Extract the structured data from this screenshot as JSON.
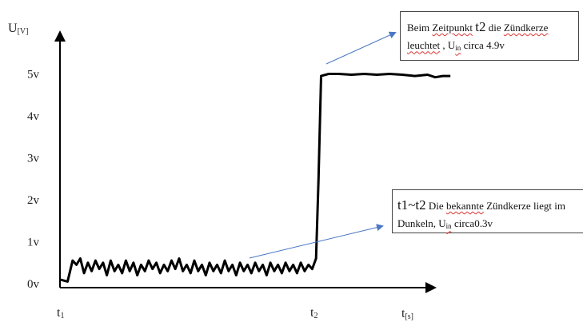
{
  "chart_data": {
    "type": "line",
    "ylabel": {
      "base": "U",
      "sub": "[V]"
    },
    "xlabel": {
      "base": "t",
      "sub": "[s]"
    },
    "y_ticks": [
      {
        "label": "0v",
        "value": 0
      },
      {
        "label": "1v",
        "value": 1
      },
      {
        "label": "2v",
        "value": 2
      },
      {
        "label": "3v",
        "value": 3
      },
      {
        "label": "4v",
        "value": 4
      },
      {
        "label": "5v",
        "value": 5
      }
    ],
    "x_ticks": [
      {
        "base": "t",
        "sub": "1",
        "value": 0
      },
      {
        "base": "t",
        "sub": "2",
        "value": 1
      }
    ],
    "ylim": [
      -0.3,
      5.8
    ],
    "xlim": [
      0,
      1.55
    ],
    "grid": false,
    "series": [
      {
        "x": [
          0.0,
          0.03,
          0.05,
          0.065,
          0.08,
          0.095,
          0.11,
          0.125,
          0.14,
          0.155,
          0.17,
          0.185,
          0.2,
          0.215,
          0.23,
          0.245,
          0.26,
          0.275,
          0.29,
          0.305,
          0.32,
          0.335,
          0.35,
          0.365,
          0.38,
          0.395,
          0.41,
          0.425,
          0.44,
          0.455,
          0.47,
          0.485,
          0.5,
          0.515,
          0.53,
          0.545,
          0.56,
          0.575,
          0.59,
          0.605,
          0.62,
          0.635,
          0.65,
          0.665,
          0.68,
          0.695,
          0.71,
          0.725,
          0.74,
          0.755,
          0.77,
          0.785,
          0.8,
          0.815,
          0.83,
          0.845,
          0.86,
          0.875,
          0.89,
          0.905,
          0.92,
          0.935,
          0.95,
          0.965,
          0.98,
          0.995,
          1.01,
          1.02,
          1.03,
          1.06,
          1.1,
          1.15,
          1.2,
          1.25,
          1.3,
          1.35,
          1.4,
          1.45,
          1.48,
          1.51,
          1.54
        ],
        "y": [
          0.1,
          0.05,
          0.55,
          0.45,
          0.6,
          0.25,
          0.5,
          0.3,
          0.55,
          0.35,
          0.5,
          0.2,
          0.55,
          0.3,
          0.45,
          0.25,
          0.55,
          0.3,
          0.5,
          0.2,
          0.45,
          0.3,
          0.55,
          0.35,
          0.5,
          0.25,
          0.45,
          0.3,
          0.55,
          0.35,
          0.6,
          0.3,
          0.45,
          0.25,
          0.55,
          0.3,
          0.45,
          0.2,
          0.5,
          0.3,
          0.45,
          0.25,
          0.55,
          0.3,
          0.45,
          0.2,
          0.5,
          0.3,
          0.45,
          0.25,
          0.5,
          0.3,
          0.45,
          0.2,
          0.5,
          0.3,
          0.45,
          0.25,
          0.5,
          0.3,
          0.45,
          0.25,
          0.5,
          0.3,
          0.45,
          0.35,
          0.6,
          2.5,
          4.95,
          5.0,
          5.0,
          4.98,
          5.0,
          4.98,
          5.0,
          4.98,
          4.95,
          4.98,
          4.92,
          4.95,
          4.95
        ]
      }
    ]
  },
  "annotations": {
    "note1": {
      "a": "Beim ",
      "b": "Zeitpunkt",
      "c": " ",
      "t2": "t2",
      "d": " die ",
      "e": "Zündkerze",
      "f": "leuchtet",
      "g": " ,    ",
      "u": "U",
      "in": "in",
      "h": " circa 4.9v"
    },
    "note2": {
      "t1": "t1~t2",
      "a": " Die ",
      "b": "bekannte",
      "c": " Zündkerze liegt im",
      "d": "Dunkeln,   ",
      "u": "U",
      "in": "in",
      "e": " circa0.3v"
    }
  }
}
